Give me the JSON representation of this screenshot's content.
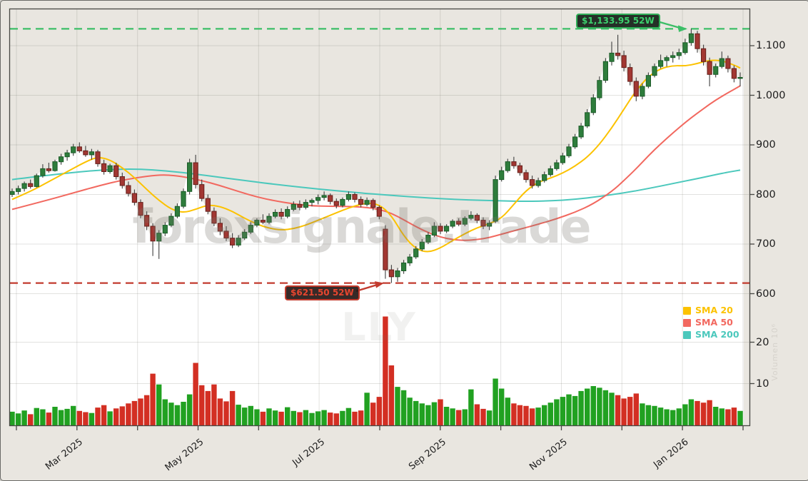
{
  "watermark": {
    "main": "forexsignale.trade",
    "symbol": "LLY"
  },
  "annotations": {
    "high": {
      "label": "$1,133.95 52W",
      "price": 1133.95,
      "color": "#2fae57",
      "text_color": "#3cd06d",
      "bg": "rgba(20,32,23,0.92)"
    },
    "low": {
      "label": "$621.50 52W",
      "price": 621.5,
      "color": "#c0392b",
      "text_color": "#e8462f",
      "bg": "rgba(38,24,22,0.92)"
    }
  },
  "legend": [
    {
      "label": "SMA 20",
      "color": "#fcc200"
    },
    {
      "label": "SMA 50",
      "color": "#f2685f"
    },
    {
      "label": "SMA 200",
      "color": "#4bc8bc"
    }
  ],
  "axes": {
    "price_ticks": [
      {
        "label": "1.100",
        "value": 1100
      },
      {
        "label": "1.000",
        "value": 1000
      },
      {
        "label": "900",
        "value": 900
      },
      {
        "label": "800",
        "value": 800
      },
      {
        "label": "700",
        "value": 700
      },
      {
        "label": "600",
        "value": 600
      }
    ],
    "volume_ticks": [
      {
        "label": "20",
        "value": 20
      },
      {
        "label": "10",
        "value": 10
      }
    ],
    "x_tick_labels": [
      "",
      "Mar 2025",
      "",
      "May 2025",
      "",
      "Jul 2025",
      "",
      "Sep 2025",
      "",
      "Nov 2025",
      "",
      "Jan 2026",
      ""
    ],
    "volume_axis_label": "Volumen 10⁶"
  },
  "chart_data": {
    "type": "candlestick",
    "symbol": "LLY",
    "x_range": [
      "Feb 2025",
      "Jan 2026"
    ],
    "high_52w": 1133.95,
    "low_52w": 621.5,
    "price_ylim": [
      600,
      1175
    ],
    "volume_unit": "millions",
    "grid": true,
    "candles_ohlcv": [
      [
        800,
        812,
        795,
        806,
        3.2
      ],
      [
        806,
        818,
        800,
        812,
        2.8
      ],
      [
        812,
        826,
        806,
        822,
        3.5
      ],
      [
        822,
        830,
        812,
        816,
        2.6
      ],
      [
        816,
        842,
        814,
        838,
        4.1
      ],
      [
        838,
        861,
        834,
        852,
        3.8
      ],
      [
        852,
        864,
        844,
        848,
        3.0
      ],
      [
        848,
        870,
        846,
        866,
        4.4
      ],
      [
        866,
        882,
        860,
        876,
        3.6
      ],
      [
        876,
        890,
        868,
        884,
        3.9
      ],
      [
        884,
        902,
        878,
        896,
        4.6
      ],
      [
        896,
        905,
        884,
        888,
        3.4
      ],
      [
        888,
        898,
        876,
        880,
        3.1
      ],
      [
        880,
        892,
        870,
        886,
        2.9
      ],
      [
        886,
        890,
        856,
        862,
        4.2
      ],
      [
        862,
        870,
        840,
        846,
        4.8
      ],
      [
        846,
        862,
        842,
        858,
        3.3
      ],
      [
        858,
        864,
        830,
        836,
        4.0
      ],
      [
        836,
        844,
        812,
        818,
        4.5
      ],
      [
        818,
        826,
        796,
        802,
        5.2
      ],
      [
        802,
        810,
        778,
        784,
        5.8
      ],
      [
        784,
        790,
        752,
        758,
        6.4
      ],
      [
        758,
        766,
        728,
        736,
        7.2
      ],
      [
        736,
        742,
        676,
        706,
        12.4
      ],
      [
        706,
        728,
        670,
        722,
        9.8
      ],
      [
        722,
        744,
        716,
        738,
        6.2
      ],
      [
        738,
        762,
        734,
        756,
        5.4
      ],
      [
        756,
        782,
        752,
        776,
        4.8
      ],
      [
        776,
        812,
        772,
        806,
        5.6
      ],
      [
        806,
        872,
        800,
        864,
        7.4
      ],
      [
        864,
        880,
        812,
        820,
        15.0
      ],
      [
        820,
        830,
        786,
        792,
        9.6
      ],
      [
        792,
        800,
        760,
        766,
        8.2
      ],
      [
        766,
        774,
        736,
        742,
        9.8
      ],
      [
        742,
        752,
        718,
        726,
        6.4
      ],
      [
        726,
        736,
        706,
        712,
        5.7
      ],
      [
        712,
        722,
        692,
        698,
        8.2
      ],
      [
        698,
        718,
        694,
        712,
        4.9
      ],
      [
        712,
        730,
        708,
        724,
        4.2
      ],
      [
        724,
        744,
        720,
        738,
        4.6
      ],
      [
        738,
        752,
        734,
        748,
        3.8
      ],
      [
        748,
        760,
        740,
        744,
        3.2
      ],
      [
        744,
        762,
        740,
        756,
        4.0
      ],
      [
        756,
        770,
        752,
        764,
        3.5
      ],
      [
        764,
        772,
        750,
        756,
        3.2
      ],
      [
        756,
        776,
        752,
        770,
        4.3
      ],
      [
        770,
        786,
        766,
        780,
        3.4
      ],
      [
        780,
        788,
        768,
        774,
        3.1
      ],
      [
        774,
        790,
        770,
        784,
        3.6
      ],
      [
        784,
        792,
        776,
        788,
        2.9
      ],
      [
        788,
        800,
        780,
        794,
        3.3
      ],
      [
        794,
        806,
        788,
        798,
        3.6
      ],
      [
        798,
        802,
        780,
        786,
        3.0
      ],
      [
        786,
        792,
        772,
        778,
        2.8
      ],
      [
        778,
        794,
        774,
        790,
        3.4
      ],
      [
        790,
        806,
        786,
        800,
        4.1
      ],
      [
        800,
        804,
        784,
        790,
        3.2
      ],
      [
        790,
        796,
        774,
        780,
        3.5
      ],
      [
        780,
        794,
        776,
        788,
        7.8
      ],
      [
        788,
        792,
        768,
        774,
        5.4
      ],
      [
        774,
        778,
        750,
        756,
        6.8
      ],
      [
        730,
        738,
        630,
        648,
        26.2
      ],
      [
        648,
        658,
        621.5,
        634,
        14.4
      ],
      [
        634,
        652,
        624,
        646,
        9.2
      ],
      [
        646,
        668,
        640,
        662,
        8.4
      ],
      [
        662,
        680,
        656,
        674,
        6.6
      ],
      [
        674,
        696,
        670,
        690,
        5.8
      ],
      [
        690,
        710,
        686,
        704,
        5.2
      ],
      [
        704,
        724,
        700,
        718,
        4.8
      ],
      [
        718,
        744,
        714,
        736,
        5.5
      ],
      [
        736,
        742,
        720,
        726,
        6.2
      ],
      [
        726,
        740,
        722,
        736,
        4.4
      ],
      [
        736,
        750,
        732,
        746,
        4.0
      ],
      [
        746,
        752,
        736,
        740,
        3.6
      ],
      [
        740,
        756,
        736,
        752,
        3.8
      ],
      [
        752,
        766,
        748,
        758,
        8.6
      ],
      [
        758,
        762,
        742,
        748,
        5.0
      ],
      [
        748,
        754,
        730,
        736,
        3.9
      ],
      [
        736,
        748,
        728,
        742,
        3.5
      ],
      [
        746,
        838,
        742,
        830,
        11.2
      ],
      [
        830,
        856,
        826,
        848,
        8.8
      ],
      [
        848,
        872,
        844,
        866,
        6.6
      ],
      [
        866,
        876,
        852,
        858,
        5.2
      ],
      [
        858,
        864,
        838,
        844,
        4.8
      ],
      [
        844,
        850,
        824,
        830,
        4.6
      ],
      [
        830,
        838,
        812,
        818,
        4.0
      ],
      [
        818,
        834,
        814,
        828,
        4.2
      ],
      [
        828,
        846,
        824,
        840,
        4.8
      ],
      [
        840,
        858,
        836,
        852,
        5.4
      ],
      [
        852,
        870,
        848,
        864,
        6.2
      ],
      [
        864,
        884,
        860,
        878,
        6.8
      ],
      [
        878,
        902,
        874,
        896,
        7.4
      ],
      [
        896,
        922,
        892,
        916,
        7.0
      ],
      [
        916,
        944,
        912,
        938,
        8.2
      ],
      [
        938,
        972,
        934,
        965,
        8.8
      ],
      [
        965,
        1002,
        960,
        995,
        9.4
      ],
      [
        995,
        1038,
        990,
        1030,
        9.0
      ],
      [
        1030,
        1075,
        1025,
        1068,
        8.4
      ],
      [
        1068,
        1108,
        1060,
        1085,
        7.8
      ],
      [
        1085,
        1122,
        1072,
        1080,
        7.2
      ],
      [
        1080,
        1090,
        1048,
        1056,
        6.4
      ],
      [
        1056,
        1064,
        1020,
        1028,
        6.8
      ],
      [
        1028,
        1036,
        988,
        998,
        7.6
      ],
      [
        998,
        1024,
        992,
        1018,
        5.2
      ],
      [
        1018,
        1046,
        1014,
        1040,
        4.8
      ],
      [
        1040,
        1064,
        1036,
        1058,
        4.6
      ],
      [
        1058,
        1082,
        1054,
        1070,
        4.2
      ],
      [
        1070,
        1080,
        1058,
        1076,
        3.8
      ],
      [
        1076,
        1088,
        1066,
        1080,
        3.6
      ],
      [
        1080,
        1094,
        1072,
        1086,
        4.0
      ],
      [
        1086,
        1114,
        1082,
        1106,
        5.0
      ],
      [
        1106,
        1133.95,
        1100,
        1124,
        6.2
      ],
      [
        1124,
        1130,
        1086,
        1094,
        5.8
      ],
      [
        1094,
        1102,
        1060,
        1068,
        5.4
      ],
      [
        1068,
        1076,
        1018,
        1042,
        6.0
      ],
      [
        1042,
        1064,
        1036,
        1058,
        4.4
      ],
      [
        1058,
        1088,
        1054,
        1074,
        4.0
      ],
      [
        1074,
        1080,
        1046,
        1054,
        3.8
      ],
      [
        1054,
        1060,
        1026,
        1034,
        4.2
      ],
      [
        1034,
        1046,
        1018,
        1036,
        3.4
      ]
    ],
    "sma20_anchors": [
      [
        0,
        790
      ],
      [
        3,
        806
      ],
      [
        6,
        826
      ],
      [
        9,
        846
      ],
      [
        12,
        866
      ],
      [
        14,
        876
      ],
      [
        16,
        870
      ],
      [
        18,
        854
      ],
      [
        20,
        834
      ],
      [
        22,
        810
      ],
      [
        24,
        788
      ],
      [
        26,
        770
      ],
      [
        28,
        763
      ],
      [
        30,
        770
      ],
      [
        32,
        779
      ],
      [
        34,
        776
      ],
      [
        36,
        766
      ],
      [
        38,
        752
      ],
      [
        40,
        740
      ],
      [
        42,
        732
      ],
      [
        44,
        728
      ],
      [
        46,
        731
      ],
      [
        48,
        738
      ],
      [
        50,
        748
      ],
      [
        52,
        758
      ],
      [
        54,
        768
      ],
      [
        56,
        777
      ],
      [
        58,
        783
      ],
      [
        60,
        780
      ],
      [
        62,
        758
      ],
      [
        64,
        716
      ],
      [
        66,
        690
      ],
      [
        68,
        683
      ],
      [
        70,
        692
      ],
      [
        72,
        707
      ],
      [
        74,
        721
      ],
      [
        76,
        733
      ],
      [
        78,
        741
      ],
      [
        80,
        752
      ],
      [
        82,
        780
      ],
      [
        84,
        808
      ],
      [
        86,
        825
      ],
      [
        88,
        833
      ],
      [
        90,
        843
      ],
      [
        92,
        857
      ],
      [
        94,
        875
      ],
      [
        96,
        901
      ],
      [
        98,
        934
      ],
      [
        100,
        972
      ],
      [
        102,
        1010
      ],
      [
        104,
        1038
      ],
      [
        106,
        1054
      ],
      [
        108,
        1060
      ],
      [
        110,
        1059
      ],
      [
        112,
        1064
      ],
      [
        114,
        1071
      ],
      [
        116,
        1070
      ],
      [
        118,
        1061
      ],
      [
        119,
        1055
      ]
    ],
    "sma50_anchors": [
      [
        0,
        770
      ],
      [
        5,
        786
      ],
      [
        10,
        803
      ],
      [
        14,
        817
      ],
      [
        18,
        829
      ],
      [
        22,
        837
      ],
      [
        25,
        840
      ],
      [
        28,
        836
      ],
      [
        31,
        828
      ],
      [
        34,
        818
      ],
      [
        37,
        806
      ],
      [
        40,
        795
      ],
      [
        43,
        787
      ],
      [
        46,
        781
      ],
      [
        49,
        777
      ],
      [
        52,
        776
      ],
      [
        55,
        776
      ],
      [
        58,
        774
      ],
      [
        60,
        770
      ],
      [
        62,
        762
      ],
      [
        64,
        749
      ],
      [
        66,
        735
      ],
      [
        68,
        723
      ],
      [
        70,
        714
      ],
      [
        72,
        709
      ],
      [
        74,
        707
      ],
      [
        76,
        709
      ],
      [
        78,
        713
      ],
      [
        80,
        720
      ],
      [
        83,
        730
      ],
      [
        86,
        740
      ],
      [
        89,
        751
      ],
      [
        92,
        764
      ],
      [
        95,
        781
      ],
      [
        98,
        806
      ],
      [
        100,
        828
      ],
      [
        102,
        852
      ],
      [
        104,
        878
      ],
      [
        106,
        902
      ],
      [
        108,
        924
      ],
      [
        110,
        945
      ],
      [
        112,
        964
      ],
      [
        114,
        982
      ],
      [
        116,
        998
      ],
      [
        118,
        1012
      ],
      [
        119,
        1019
      ]
    ],
    "sma200_anchors": [
      [
        0,
        830
      ],
      [
        8,
        842
      ],
      [
        14,
        849
      ],
      [
        20,
        852
      ],
      [
        26,
        847
      ],
      [
        32,
        838
      ],
      [
        38,
        828
      ],
      [
        44,
        819
      ],
      [
        50,
        811
      ],
      [
        56,
        804
      ],
      [
        62,
        798
      ],
      [
        68,
        793
      ],
      [
        74,
        789
      ],
      [
        80,
        787
      ],
      [
        84,
        786
      ],
      [
        88,
        787
      ],
      [
        92,
        790
      ],
      [
        96,
        796
      ],
      [
        100,
        803
      ],
      [
        104,
        812
      ],
      [
        108,
        822
      ],
      [
        112,
        832
      ],
      [
        115,
        840
      ],
      [
        117,
        845
      ],
      [
        119,
        849
      ]
    ]
  },
  "colors": {
    "figure_bg": "#e9e6e0",
    "under_price_fill": "#ffffff",
    "grid": "rgba(110,108,98,0.20)",
    "spine": "#474743",
    "candle_up_fill": "#2e7d3c",
    "candle_up_edge": "#1c5b28",
    "candle_down_fill": "#a23732",
    "candle_down_edge": "#67201b",
    "wick": "#3f3f3f",
    "volume_up": "#21a121",
    "volume_down": "#d32f23",
    "sma20": "#fcc200",
    "sma50": "#f2685f",
    "sma200": "#4bc8bc",
    "high_line": "#3cbe67",
    "low_line": "#c23a2e"
  }
}
